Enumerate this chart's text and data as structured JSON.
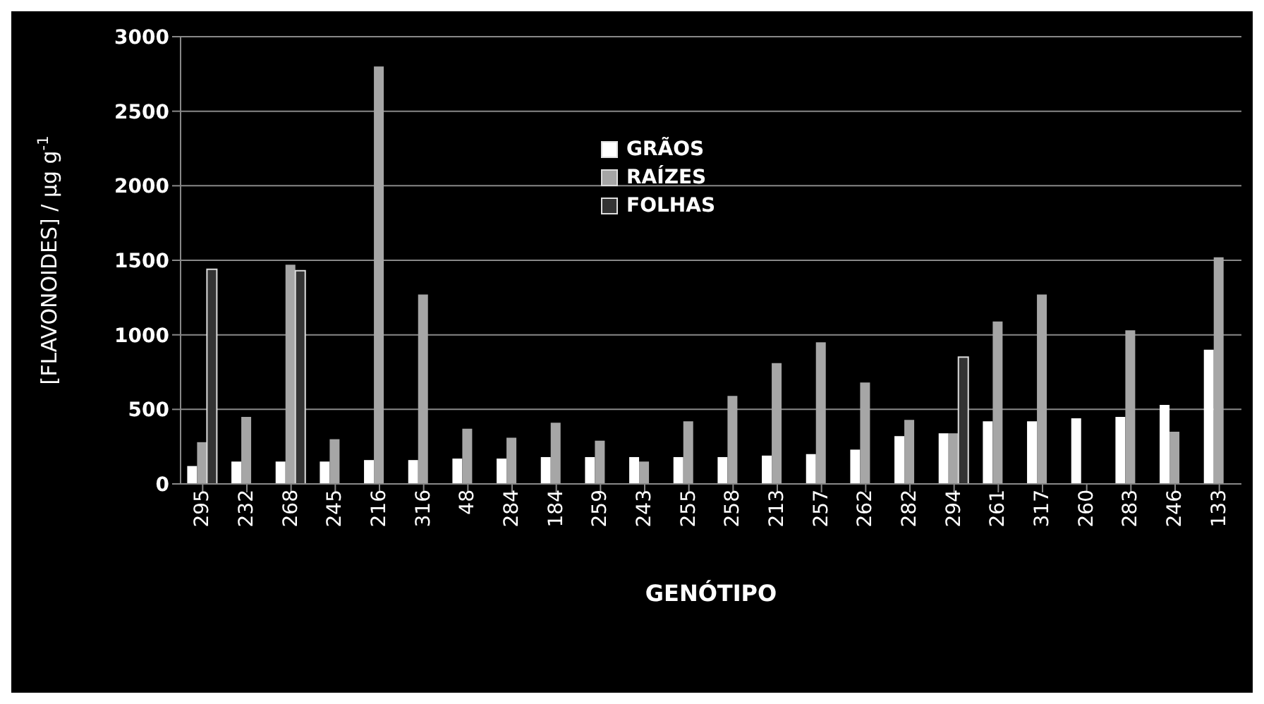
{
  "chart_data": {
    "type": "bar",
    "xlabel": "GENÓTIPO",
    "ylabel": "[FLAVONOIDES] / μg g$^{-1}$",
    "categories": [
      "295",
      "232",
      "268",
      "245",
      "216",
      "316",
      "48",
      "284",
      "184",
      "259",
      "243",
      "255",
      "258",
      "213",
      "257",
      "262",
      "282",
      "294",
      "261",
      "317",
      "260",
      "283",
      "246",
      "133"
    ],
    "series": [
      {
        "name": "GRÃOS",
        "color": "#ffffff",
        "values": [
          120,
          150,
          150,
          150,
          160,
          160,
          170,
          170,
          180,
          180,
          180,
          180,
          180,
          190,
          200,
          230,
          320,
          340,
          420,
          420,
          440,
          450,
          530,
          900
        ]
      },
      {
        "name": "RAÍZES",
        "color": "#a6a6a6",
        "values": [
          280,
          450,
          1470,
          300,
          2800,
          1270,
          370,
          310,
          410,
          290,
          150,
          420,
          590,
          810,
          950,
          680,
          430,
          340,
          1090,
          1270,
          null,
          1030,
          350,
          1520
        ]
      },
      {
        "name": "FOLHAS",
        "color": "#333333",
        "values": [
          1440,
          null,
          1430,
          null,
          null,
          null,
          null,
          null,
          null,
          null,
          null,
          null,
          null,
          null,
          null,
          null,
          null,
          850,
          null,
          null,
          null,
          null,
          null,
          null
        ]
      }
    ],
    "ylim": [
      0,
      3000
    ],
    "yticks": [
      0,
      500,
      1000,
      1500,
      2000,
      2500,
      3000
    ],
    "grid": "y",
    "legend": "top"
  }
}
